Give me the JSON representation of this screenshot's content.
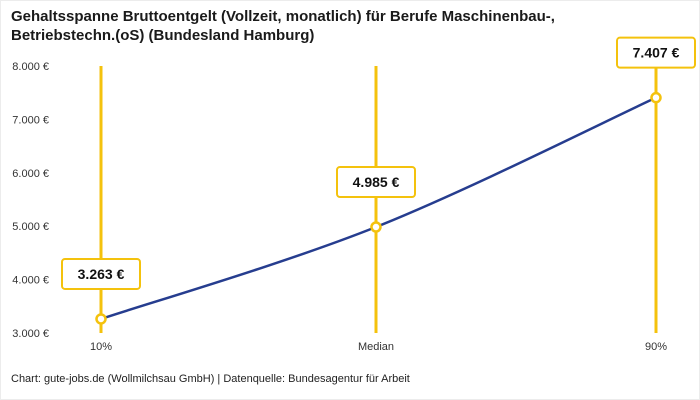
{
  "title": {
    "line1": "Gehaltsspanne Bruttoentgelt (Vollzeit, monatlich) für Berufe Maschinenbau-,",
    "line2": "Betriebstechn.(oS) (Bundesland Hamburg)"
  },
  "footer": "Chart: gute-jobs.de (Wollmilchsau GmbH) | Datenquelle: Bundesagentur für Arbeit",
  "colors": {
    "accent_gold": "#F4C20D",
    "line_blue": "#263D8F",
    "marker_fill": "#FFFFFF",
    "label_box_fill": "#FFFFFF",
    "text": "#1A1A1A",
    "axis_text": "#333333",
    "background": "#FFFFFF"
  },
  "chart_data": {
    "type": "line",
    "title": "Gehaltsspanne Bruttoentgelt (Vollzeit, monatlich) für Berufe Maschinenbau-, Betriebstechn.(oS) (Bundesland Hamburg)",
    "categories": [
      "10%",
      "Median",
      "90%"
    ],
    "values": [
      3263,
      4985,
      7407
    ],
    "data_labels": [
      "3.263 €",
      "4.985 €",
      "7.407 €"
    ],
    "xlabel": "",
    "ylabel": "",
    "ylim": [
      3000,
      8000
    ],
    "yticks": [
      3000,
      4000,
      5000,
      6000,
      7000,
      8000
    ],
    "ytick_labels": [
      "3.000 €",
      "4.000 €",
      "5.000 €",
      "6.000 €",
      "7.000 €",
      "8.000 €"
    ],
    "grid": false,
    "legend": false,
    "curve": "smooth",
    "vertical_guides": true,
    "marker_style": "circle-white-gold-border"
  }
}
